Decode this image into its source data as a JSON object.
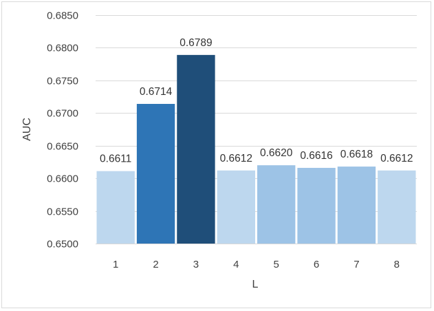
{
  "chart_data": {
    "type": "bar",
    "title": "",
    "xlabel": "L",
    "ylabel": "AUC",
    "categories": [
      "1",
      "2",
      "3",
      "4",
      "5",
      "6",
      "7",
      "8"
    ],
    "values": [
      0.6611,
      0.6714,
      0.6789,
      0.6612,
      0.662,
      0.6616,
      0.6618,
      0.6612
    ],
    "data_labels": [
      "0.6611",
      "0.6714",
      "0.6789",
      "0.6612",
      "0.6620",
      "0.6616",
      "0.6618",
      "0.6612"
    ],
    "ylim": [
      0.65,
      0.685
    ],
    "yticks": [
      "0.6500",
      "0.6550",
      "0.6600",
      "0.6650",
      "0.6700",
      "0.6750",
      "0.6800",
      "0.6850"
    ],
    "ytick_values": [
      0.65,
      0.655,
      0.66,
      0.665,
      0.67,
      0.675,
      0.68,
      0.685
    ],
    "grid": true,
    "legend": "none",
    "bar_colors": [
      "#bdd7ee",
      "#2e75b6",
      "#1f4e79",
      "#bdd7ee",
      "#9dc3e6",
      "#9dc3e6",
      "#9dc3e6",
      "#bdd7ee"
    ]
  }
}
